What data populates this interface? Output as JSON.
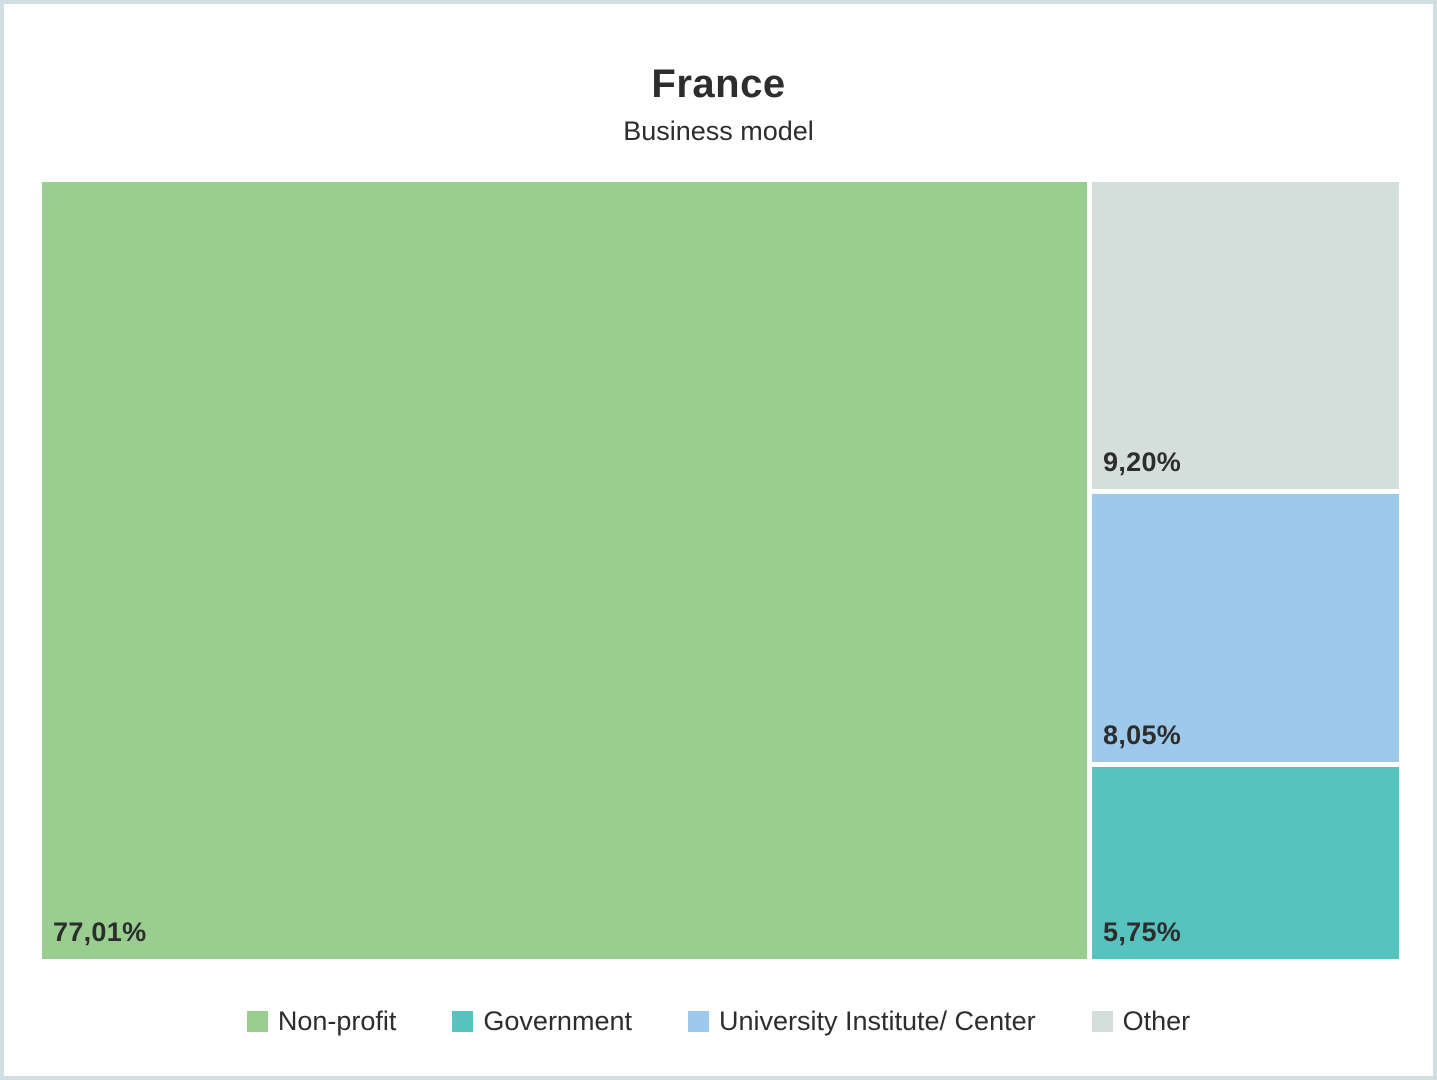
{
  "page": {
    "background": "#FFFFFF",
    "border_color": "#CFDFE1",
    "text_color": "#2D2D2D"
  },
  "header": {
    "title": "France",
    "subtitle": "Business model"
  },
  "chart_data": {
    "type": "treemap",
    "title": "France",
    "subtitle": "Business model",
    "value_format": "percent with comma decimal separator",
    "layout_hint": "Non-profit fills left 77.01% at full height; right column stacked top-to-bottom: Other, University Institute/ Center, Government; white 5px gutters between tiles; value label at bottom-left of each tile",
    "series": [
      {
        "name": "Non-profit",
        "value": 77.01,
        "label": "77,01%",
        "color": "#99CE90"
      },
      {
        "name": "Other",
        "value": 9.2,
        "label": "9,20%",
        "color": "#D4DFDC"
      },
      {
        "name": "University Institute/ Center",
        "value": 8.05,
        "label": "8,05%",
        "color": "#9DC9EB"
      },
      {
        "name": "Government",
        "value": 5.75,
        "label": "5,75%",
        "color": "#56C3BE"
      }
    ],
    "legend_position": "bottom-center"
  },
  "legend": {
    "items": [
      {
        "label": "Non-profit",
        "color": "#99CE90"
      },
      {
        "label": "Government",
        "color": "#56C3BE"
      },
      {
        "label": "University Institute/ Center",
        "color": "#9DC9EB"
      },
      {
        "label": "Other",
        "color": "#D4DFDC"
      }
    ]
  }
}
